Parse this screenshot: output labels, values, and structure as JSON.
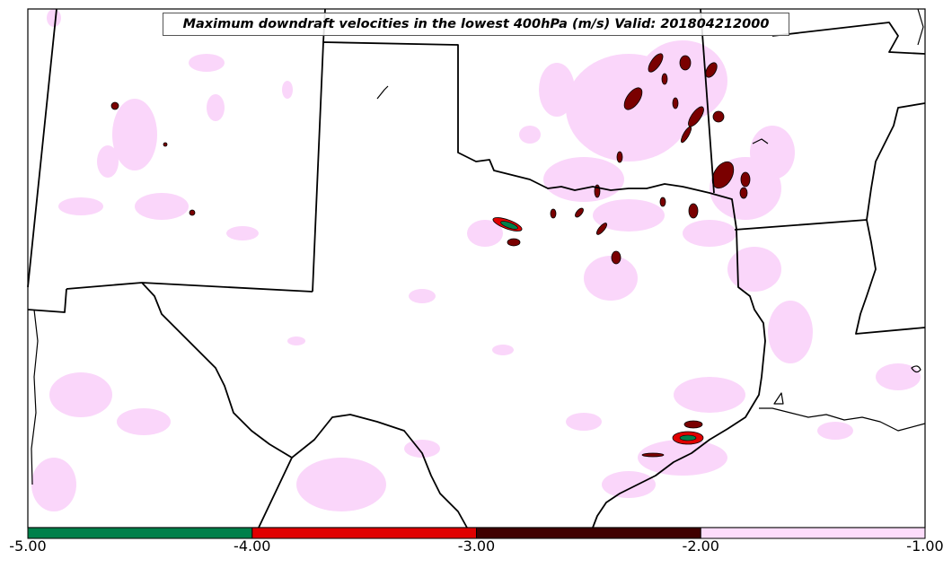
{
  "title": "Maximum downdraft velocities in the lowest 400hPa (m/s) Valid: 201804212000",
  "colorbar": {
    "ticks": [
      "-5.00",
      "-4.00",
      "-3.00",
      "-2.00",
      "-1.00"
    ],
    "bins": [
      {
        "from": -5.0,
        "to": -4.0,
        "color": "#00804a"
      },
      {
        "from": -4.0,
        "to": -3.0,
        "color": "#e00000"
      },
      {
        "from": -3.0,
        "to": -2.0,
        "color": "#400000"
      },
      {
        "from": -2.0,
        "to": -1.0,
        "color": "#fddcfb"
      }
    ]
  },
  "colors": {
    "weak": "#fad6fa",
    "moderate": "#8b0000",
    "strong": "#e00000",
    "extreme": "#00804a",
    "border": "#000000"
  }
}
